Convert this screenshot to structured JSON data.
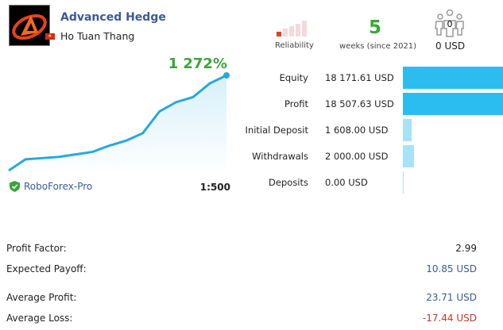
{
  "signal": {
    "title": "Advanced Hedge",
    "author": "Ho Tuan Thang",
    "country_flag": "vietnam-flag",
    "gain": "1 272%",
    "broker": "RoboForex-Pro",
    "leverage": "1:500"
  },
  "header": {
    "reliability_label": "Reliability",
    "reliability_level": 1,
    "reliability_max": 5,
    "weeks": "5",
    "weeks_label": "weeks (since 2021)",
    "subscribers": "0",
    "subscribers_funds": "0 USD"
  },
  "metrics": [
    {
      "label": "Equity",
      "value": "18 171.61 USD",
      "fill": 1.0,
      "color": "#2bbcf0"
    },
    {
      "label": "Profit",
      "value": "18 507.63 USD",
      "fill": 1.0,
      "color": "#2bbcf0"
    },
    {
      "label": "Initial Deposit",
      "value": "1 608.00 USD",
      "fill": 0.09,
      "color": "#a6e2f8"
    },
    {
      "label": "Withdrawals",
      "value": "2 000.00 USD",
      "fill": 0.11,
      "color": "#a6e2f8"
    },
    {
      "label": "Deposits",
      "value": "0.00 USD",
      "fill": 0.0,
      "color": "#a6e2f8"
    }
  ],
  "stats": [
    {
      "label": "Profit Factor:",
      "value": "2.99",
      "color": "#222222"
    },
    {
      "label": "Expected Payoff:",
      "value": "10.85 USD",
      "color": "#3a5a96"
    },
    {
      "label": "Average Profit:",
      "value": "23.71 USD",
      "color": "#3a5a96"
    },
    {
      "label": "Average Loss:",
      "value": "-17.44 USD",
      "color": "#c0392b"
    }
  ],
  "chart_data": {
    "type": "area",
    "y": [
      0,
      18,
      20,
      22,
      26,
      30,
      40,
      48,
      60,
      95,
      110,
      118,
      140,
      153
    ]
  }
}
